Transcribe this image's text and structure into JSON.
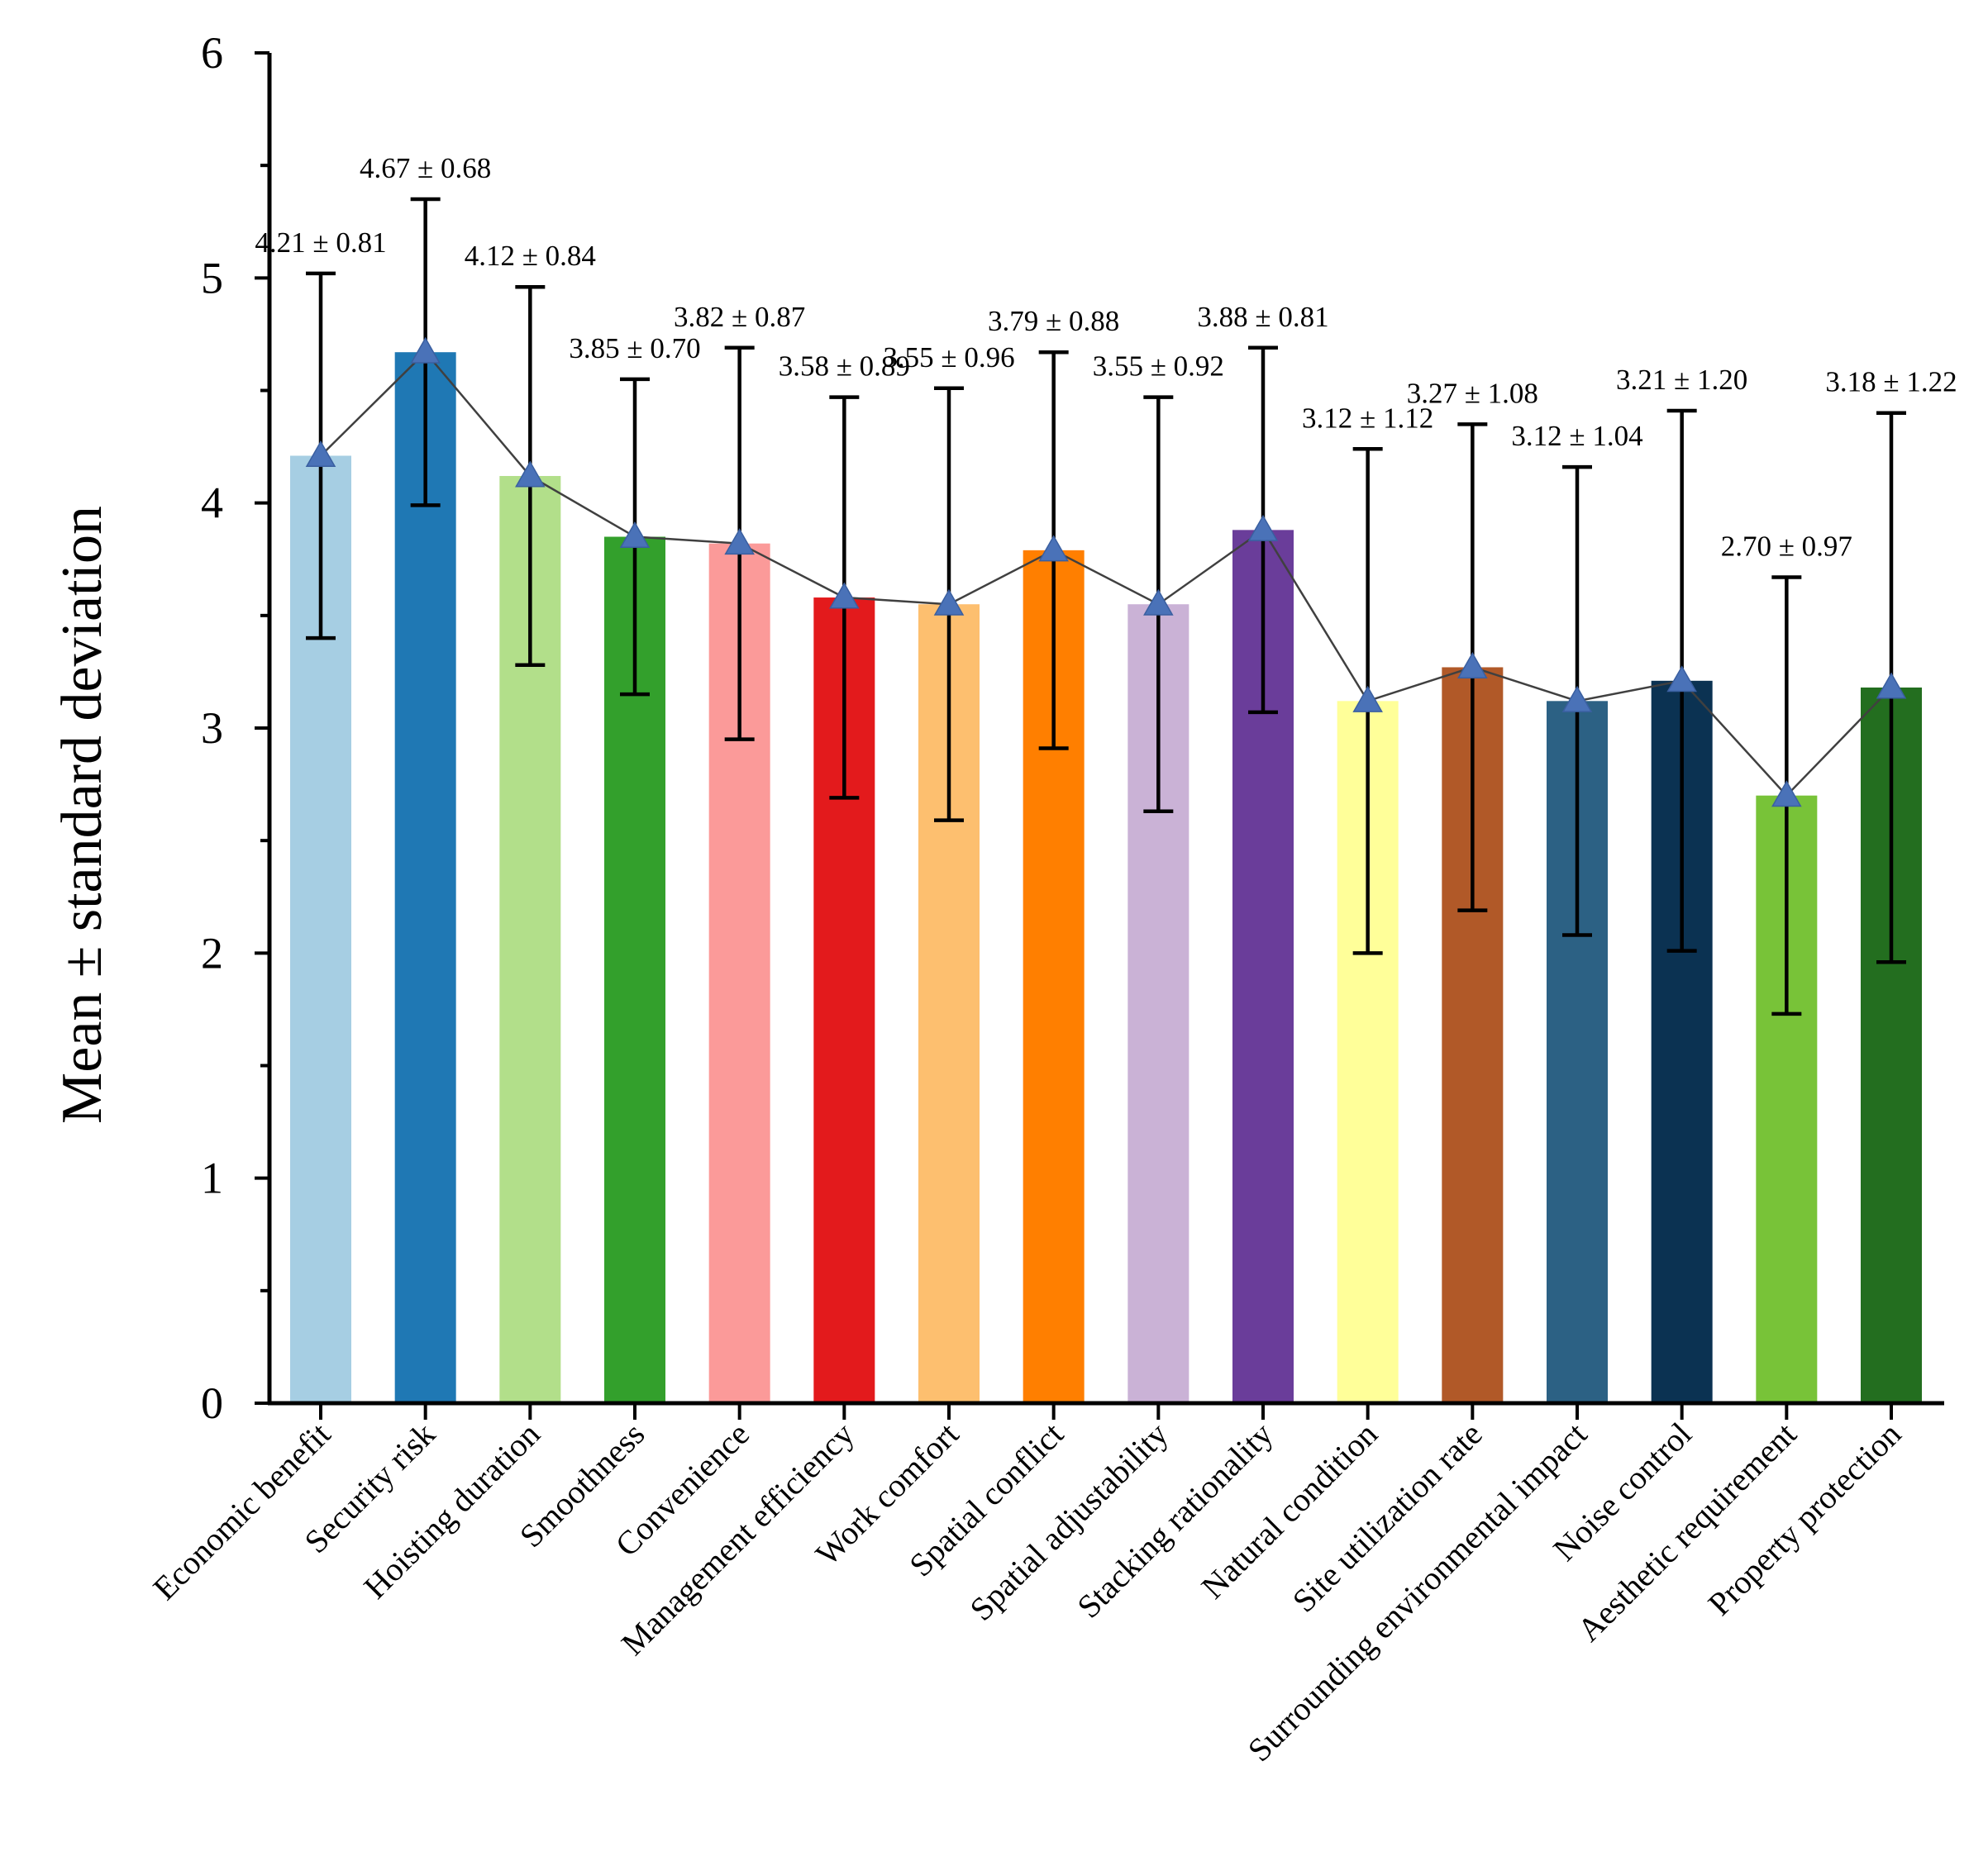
{
  "chart_data": {
    "type": "bar",
    "title": "",
    "xlabel": "",
    "ylabel": "Mean ± standard deviation",
    "ylim": [
      0,
      6
    ],
    "yticks": [
      0,
      1,
      2,
      3,
      4,
      5,
      6
    ],
    "grid": false,
    "categories": [
      "Economic benefit",
      "Security risk",
      "Hoisting duration",
      "Smoothness",
      "Convenience",
      "Management efficiency",
      "Work comfort",
      "Spatial conflict",
      "Spatial adjustability",
      "Stacking rationality",
      "Natural condition",
      "Site utilization rate",
      "Surrounding environmental impact",
      "Noise control",
      "Aesthetic requirement",
      "Property protection"
    ],
    "values": [
      4.21,
      4.67,
      4.12,
      3.85,
      3.82,
      3.58,
      3.55,
      3.79,
      3.55,
      3.88,
      3.12,
      3.27,
      3.12,
      3.21,
      2.7,
      3.18
    ],
    "errors": [
      0.81,
      0.68,
      0.84,
      0.7,
      0.87,
      0.89,
      0.96,
      0.88,
      0.92,
      0.81,
      1.12,
      1.08,
      1.04,
      1.2,
      0.97,
      1.22
    ],
    "data_labels": [
      "4.21 ± 0.81",
      "4.67 ± 0.68",
      "4.12 ± 0.84",
      "3.85 ± 0.70",
      "3.82 ± 0.87",
      "3.58 ± 0.89",
      "3.55 ± 0.96",
      "3.79 ± 0.88",
      "3.55 ± 0.92",
      "3.88 ± 0.81",
      "3.12 ± 1.12",
      "3.27 ± 1.08",
      "3.12 ± 1.04",
      "3.21 ± 1.20",
      "2.70 ± 0.97",
      "3.18 ± 1.22"
    ],
    "colors": [
      "#a6cee3",
      "#1f78b4",
      "#b2df8a",
      "#33a02c",
      "#fb9a99",
      "#e31a1c",
      "#fdbf6f",
      "#ff7f00",
      "#cab2d6",
      "#6a3d9a",
      "#ffff99",
      "#b15928",
      "#2c6184",
      "#0b3252",
      "#78c338",
      "#236e1f"
    ],
    "line_color": "#404040",
    "marker_color": "#4a72b8",
    "overlay": "mean line with triangle markers"
  }
}
